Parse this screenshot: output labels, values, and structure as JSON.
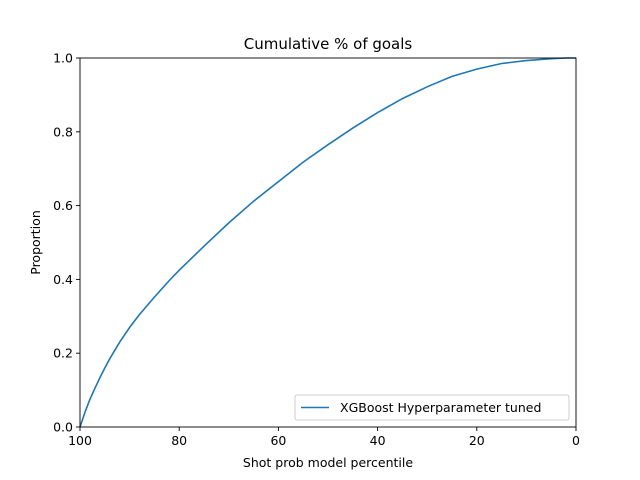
{
  "chart_data": {
    "type": "line",
    "title": "Cumulative % of goals",
    "xlabel": "Shot prob model percentile",
    "ylabel": "Proportion",
    "xlim": [
      100,
      0
    ],
    "ylim": [
      0,
      1
    ],
    "x_ticks": [
      100,
      80,
      60,
      40,
      20,
      0
    ],
    "x_tick_labels": [
      "100",
      "80",
      "60",
      "40",
      "20",
      "0"
    ],
    "y_ticks": [
      0,
      0.2,
      0.4,
      0.6,
      0.8,
      1
    ],
    "y_tick_labels": [
      "0.0",
      "0.2",
      "0.4",
      "0.6",
      "0.8",
      "1.0"
    ],
    "grid": false,
    "legend": "lower-right",
    "series": [
      {
        "name": "XGBoost Hyperparameter tuned",
        "color": "#1f77b4",
        "x": [
          100,
          99,
          98,
          97,
          96,
          95,
          94,
          92,
          90,
          88,
          85,
          82,
          80,
          75,
          70,
          65,
          60,
          55,
          50,
          45,
          40,
          35,
          30,
          25,
          20,
          15,
          10,
          5,
          2,
          0
        ],
        "y": [
          0,
          0.04,
          0.075,
          0.105,
          0.133,
          0.16,
          0.185,
          0.23,
          0.27,
          0.305,
          0.352,
          0.397,
          0.425,
          0.49,
          0.553,
          0.612,
          0.665,
          0.718,
          0.765,
          0.81,
          0.852,
          0.89,
          0.922,
          0.95,
          0.97,
          0.985,
          0.993,
          0.998,
          1.0,
          1.0
        ]
      }
    ]
  }
}
